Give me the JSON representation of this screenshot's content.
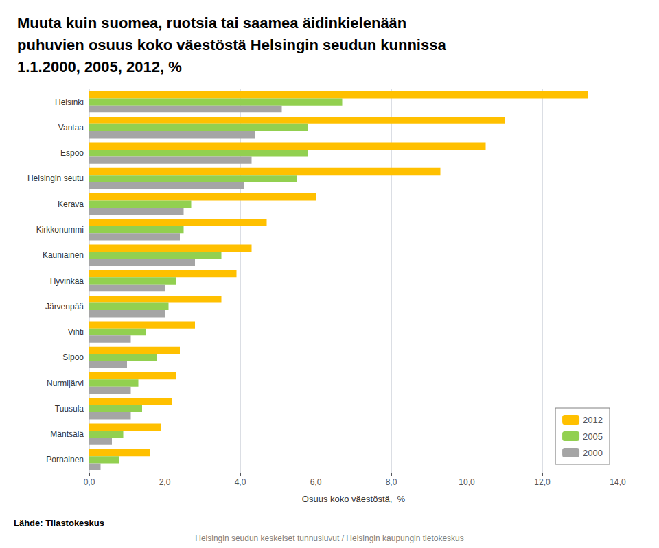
{
  "chart_data": {
    "type": "bar",
    "orientation": "horizontal",
    "title": "Muuta kuin suomea, ruotsia tai saamea äidinkielenään\npuhuvien osuus koko väestöstä Helsingin seudun kunnissa\n1.1.2000, 2005, 2012, %",
    "categories": [
      "Helsinki",
      "Vantaa",
      "Espoo",
      "Helsingin seutu",
      "Kerava",
      "Kirkkonummi",
      "Kauniainen",
      "Hyvinkää",
      "Järvenpää",
      "Vihti",
      "Sipoo",
      "Nurmijärvi",
      "Tuusula",
      "Mäntsälä",
      "Pornainen"
    ],
    "series": [
      {
        "name": "2012",
        "color": "#FFC000",
        "values": [
          13.2,
          11.0,
          10.5,
          9.3,
          6.0,
          4.7,
          4.3,
          3.9,
          3.5,
          2.8,
          2.4,
          2.3,
          2.2,
          1.9,
          1.6
        ]
      },
      {
        "name": "2005",
        "color": "#92D050",
        "values": [
          6.7,
          5.8,
          5.8,
          5.5,
          2.7,
          2.5,
          3.5,
          2.3,
          2.1,
          1.5,
          1.8,
          1.3,
          1.4,
          0.9,
          0.8
        ]
      },
      {
        "name": "2000",
        "color": "#A5A5A5",
        "values": [
          5.1,
          4.4,
          4.3,
          4.1,
          2.5,
          2.4,
          2.8,
          2.0,
          2.0,
          1.1,
          1.0,
          1.1,
          1.1,
          0.6,
          0.3
        ]
      }
    ],
    "xlabel": "Osuus koko väestöstä,  %",
    "xlim": [
      0,
      14.0
    ],
    "xticks": [
      {
        "value": 0.0,
        "label": "0,0"
      },
      {
        "value": 2.0,
        "label": "2,0"
      },
      {
        "value": 4.0,
        "label": "4,0"
      },
      {
        "value": 6.0,
        "label": "6,0"
      },
      {
        "value": 8.0,
        "label": "8,0"
      },
      {
        "value": 10.0,
        "label": "10,0"
      },
      {
        "value": 12.0,
        "label": "12,0"
      },
      {
        "value": 14.0,
        "label": "14,0"
      }
    ],
    "grid": true,
    "legend": "lower right",
    "annotations": [
      "Lähde: Tilastokeskus",
      "Helsingin seudun keskeiset tunnusluvut / Helsingin kaupungin tietokeskus"
    ]
  }
}
